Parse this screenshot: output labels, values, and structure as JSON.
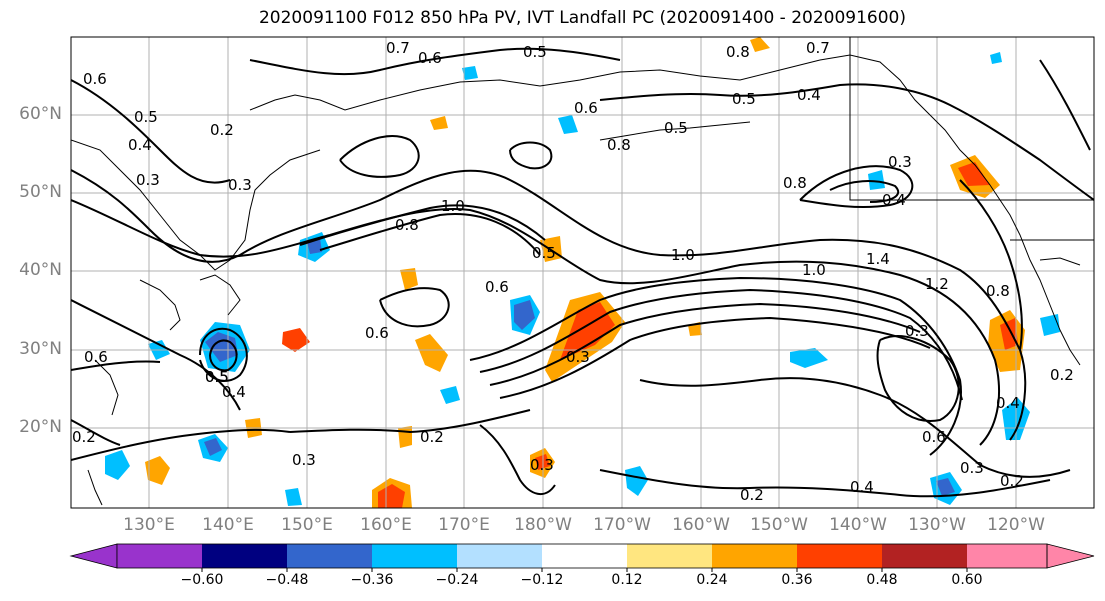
{
  "title": "2020091100 F012 850 hPa PV, IVT Landfall PC (2020091400 - 2020091600)",
  "lat_labels": [
    "60°N",
    "50°N",
    "40°N",
    "30°N",
    "20°N"
  ],
  "lon_labels": [
    "130°E",
    "140°E",
    "150°E",
    "160°E",
    "170°E",
    "180°W",
    "170°W",
    "160°W",
    "150°W",
    "140°W",
    "130°W",
    "120°W"
  ],
  "colorbar": {
    "ticks": [
      "−0.60",
      "−0.48",
      "−0.36",
      "−0.24",
      "−0.12",
      "0.12",
      "0.24",
      "0.36",
      "0.48",
      "0.60"
    ],
    "colors": [
      "#9933cc",
      "#000080",
      "#3366cc",
      "#00bfff",
      "#b3e0ff",
      "#ffffff",
      "#ffe680",
      "#ffa500",
      "#ff4000",
      "#b22222",
      "#ff85a8"
    ]
  },
  "contour_labels": [
    "0.7",
    "0.6",
    "0.5",
    "0.8",
    "0.7",
    "0.6",
    "0.5",
    "0.4",
    "0.5",
    "0.8",
    "0.6",
    "0.4",
    "0.3",
    "0.5",
    "0.8",
    "1.0",
    "0.8",
    "0.4",
    "0.3",
    "0.2",
    "0.5",
    "0.2",
    "0.5",
    "0.6",
    "0.6",
    "1.0",
    "1.0",
    "1.4",
    "1.2",
    "0.3",
    "0.3",
    "0.8",
    "0.6",
    "0.4",
    "0.5",
    "0.4",
    "0.2",
    "0.3",
    "0.2",
    "0.3",
    "0.2",
    "0.4",
    "0.3",
    "0.2",
    "0.6",
    "0.3"
  ]
}
